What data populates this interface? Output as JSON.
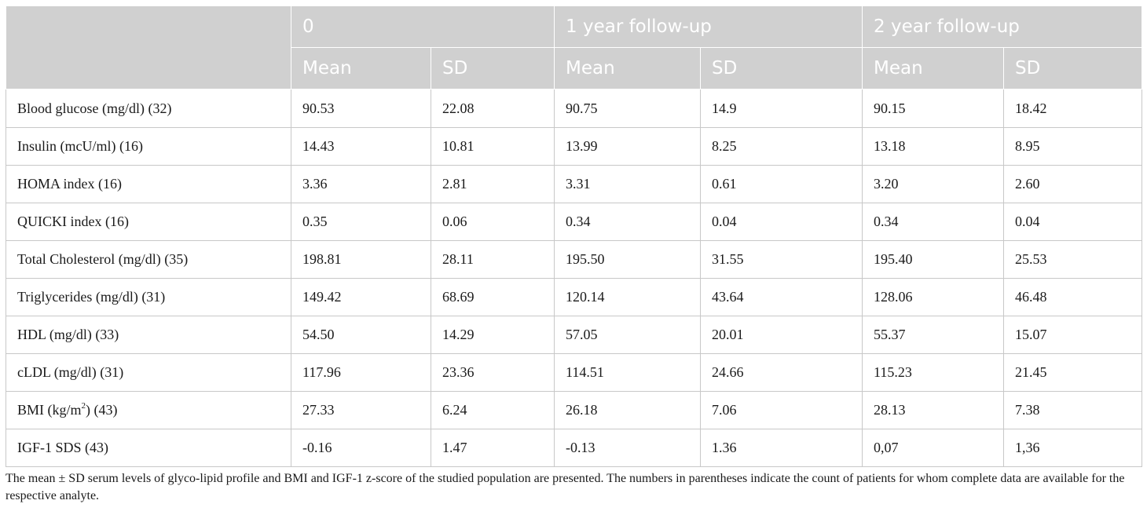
{
  "table": {
    "groups": [
      "",
      "0",
      "1 year follow-up",
      "2 year follow-up"
    ],
    "subheaders": [
      "Mean",
      "SD",
      "Mean",
      "SD",
      "Mean",
      "SD"
    ],
    "rows": [
      {
        "label": "Blood glucose (mg/dl) (32)",
        "values": [
          "90.53",
          "22.08",
          "90.75",
          "14.9",
          "90.15",
          "18.42"
        ]
      },
      {
        "label": "Insulin (mcU/ml) (16)",
        "values": [
          "14.43",
          "10.81",
          "13.99",
          "8.25",
          "13.18",
          "8.95"
        ]
      },
      {
        "label": "HOMA index (16)",
        "values": [
          "3.36",
          "2.81",
          "3.31",
          "0.61",
          "3.20",
          "2.60"
        ]
      },
      {
        "label": "QUICKI index (16)",
        "values": [
          "0.35",
          "0.06",
          "0.34",
          "0.04",
          "0.34",
          "0.04"
        ]
      },
      {
        "label": "Total Cholesterol (mg/dl) (35)",
        "values": [
          "198.81",
          "28.11",
          "195.50",
          "31.55",
          "195.40",
          "25.53"
        ]
      },
      {
        "label": "Triglycerides (mg/dl) (31)",
        "values": [
          "149.42",
          "68.69",
          "120.14",
          "43.64",
          "128.06",
          "46.48"
        ]
      },
      {
        "label": "HDL (mg/dl) (33)",
        "values": [
          "54.50",
          "14.29",
          "57.05",
          "20.01",
          "55.37",
          "15.07"
        ]
      },
      {
        "label": "cLDL (mg/dl) (31)",
        "values": [
          "117.96",
          "23.36",
          "114.51",
          "24.66",
          "115.23",
          "21.45"
        ]
      },
      {
        "label_prefix": "BMI (kg/m",
        "label_sup": "2",
        "label_suffix": ") (43)",
        "values": [
          "27.33",
          "6.24",
          "26.18",
          "7.06",
          "28.13",
          "7.38"
        ]
      },
      {
        "label": "IGF-1 SDS (43)",
        "values": [
          "-0.16",
          "1.47",
          "-0.13",
          "1.36",
          "0,07",
          "1,36"
        ]
      }
    ]
  },
  "footnote": "The mean ± SD serum levels of glyco-lipid profile and BMI and IGF-1 z-score of the studied population are presented. The numbers in parentheses indicate the count of patients for whom complete data are available for the respective analyte."
}
